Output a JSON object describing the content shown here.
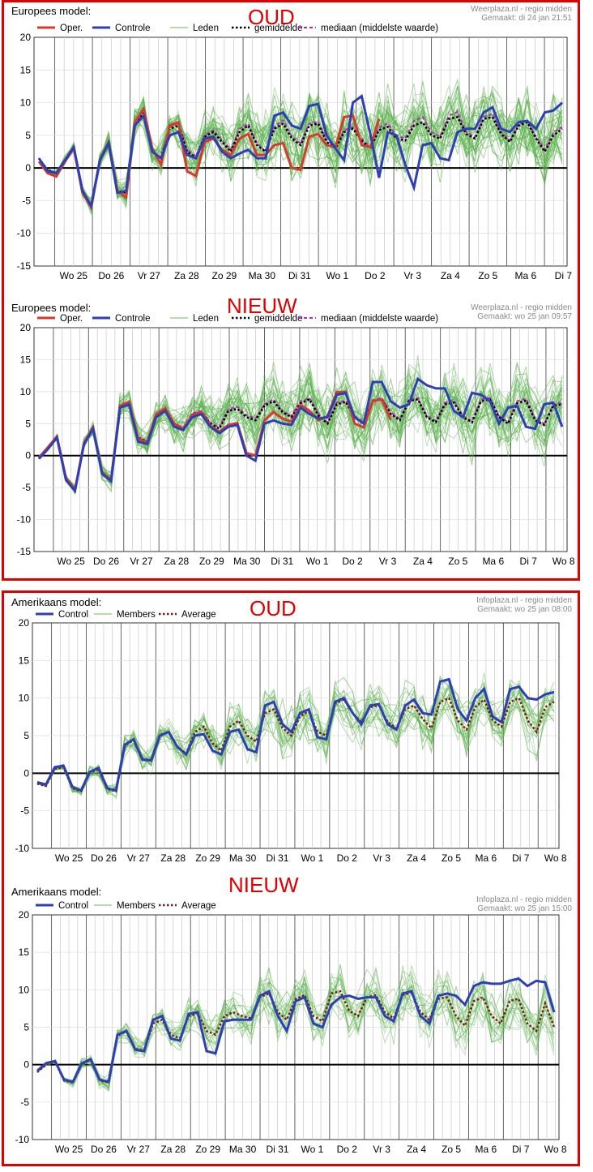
{
  "frames": [
    {
      "name": "frame-europees"
    },
    {
      "name": "frame-amerikaans"
    }
  ],
  "chart_data": [
    {
      "type": "line",
      "panel_title": "Europees model:",
      "label": "OUD",
      "credit_source": "Weerplaza.nl - regio midden",
      "credit_made": "Gemaakt: di 24 jan 21:51",
      "legend": [
        "Oper.",
        "Controle",
        "Leden",
        "gemiddelde",
        "mediaan (middelste waarde)"
      ],
      "ylim": [
        -15,
        20
      ],
      "yticks": [
        "20",
        "15",
        "10",
        "5",
        "0",
        "-5",
        "-10",
        "-15"
      ],
      "days": [
        "Wo 25",
        "Do 26",
        "Vr 27",
        "Za 28",
        "Zo 29",
        "Ma 30",
        "Di 31",
        "Wo 1",
        "Do 2",
        "Vr 3",
        "Za 4",
        "Zo 5",
        "Ma 6",
        "Di 7"
      ],
      "colors": {
        "oper": "#d63a2f",
        "control": "#2e3fb5",
        "members": "#5cb24e",
        "mean": "#000000",
        "median": "#c21fcc"
      },
      "control": [
        1.5,
        -0.5,
        -0.8,
        1.2,
        3.2,
        -3.5,
        -5.8,
        1.2,
        3.8,
        -3.8,
        -3.5,
        6.5,
        8.0,
        2.5,
        1.5,
        5.0,
        5.5,
        2.0,
        1.5,
        4.5,
        4.8,
        2.5,
        1.5,
        2.2,
        2.8,
        1.5,
        1.5,
        8.0,
        8.5,
        6.5,
        6.0,
        9.5,
        9.8,
        5.0,
        3.0,
        1.2,
        10.0,
        11.0,
        5.2,
        -1.5,
        5.5,
        5.0,
        0.5,
        -3.0,
        3.5,
        3.8,
        1.5,
        1.2,
        5.5,
        6.0,
        6.0,
        8.5,
        9.3,
        6.0,
        5.5,
        7.0,
        7.2,
        6.0,
        8.5,
        8.8,
        10.0
      ],
      "oper": [
        1.0,
        -0.8,
        -1.3,
        1.0,
        3.0,
        -3.8,
        -6.0,
        1.3,
        3.9,
        -3.5,
        -4.5,
        7.0,
        9.0,
        3.0,
        0.5,
        6.5,
        7.0,
        -0.5,
        -1.2,
        4.0,
        4.5,
        2.8,
        2.0,
        4.5,
        5.2,
        2.0,
        2.0,
        3.5,
        3.8,
        0.0,
        -0.3,
        4.8,
        5.2,
        3.5,
        3.2,
        7.8,
        8.0,
        3.5,
        3.2,
        7.5
      ],
      "mean": [
        1.5,
        -0.3,
        -0.8,
        1.2,
        3.2,
        -3.6,
        -5.9,
        1.2,
        3.8,
        -3.5,
        -3.8,
        6.8,
        8.5,
        2.5,
        1.5,
        6.0,
        6.5,
        2.5,
        1.5,
        4.8,
        5.5,
        4.0,
        2.5,
        5.5,
        6.5,
        3.5,
        2.5,
        6.0,
        6.8,
        4.5,
        3.5,
        6.5,
        6.8,
        4.0,
        3.0,
        5.5,
        6.0,
        4.2,
        3.0,
        5.8,
        6.3,
        4.5,
        4.2,
        6.5,
        7.0,
        5.0,
        4.5,
        7.5,
        7.8,
        5.2,
        4.5,
        7.5,
        7.8,
        5.2,
        4.0,
        6.5,
        7.0,
        4.5,
        2.5,
        5.0,
        6.0
      ],
      "median": [
        1.5,
        -0.3,
        -0.8,
        1.2,
        3.2,
        -3.6,
        -5.9,
        1.2,
        3.8,
        -3.5,
        -3.8,
        6.8,
        8.6,
        2.6,
        1.6,
        6.3,
        6.9,
        2.8,
        1.8,
        5.0,
        5.8,
        4.3,
        2.8,
        6.0,
        6.8,
        3.8,
        2.5,
        6.3,
        7.3,
        4.8,
        3.8,
        6.8,
        7.1,
        4.3,
        3.2,
        5.8,
        6.3,
        4.5,
        3.2,
        6.2,
        6.8,
        5.0,
        4.5,
        7.2,
        7.8,
        5.5,
        4.8,
        8.0,
        8.6,
        5.5,
        4.7,
        7.8,
        8.3,
        5.5,
        4.2,
        6.8,
        7.2,
        4.8,
        2.8,
        5.5,
        6.3
      ]
    },
    {
      "type": "line",
      "panel_title": "Europees model:",
      "label": "NIEUW",
      "credit_source": "Weerplaza.nl - regio midden",
      "credit_made": "Gemaakt: wo 25 jan 09:57",
      "legend": [
        "Oper.",
        "Controle",
        "Leden",
        "gemiddelde",
        "mediaan (middelste waarde)"
      ],
      "ylim": [
        -15,
        20
      ],
      "yticks": [
        "20",
        "15",
        "10",
        "5",
        "0",
        "-5",
        "-10",
        "-15"
      ],
      "days": [
        "Wo 25",
        "Do 26",
        "Vr 27",
        "Za 28",
        "Zo 29",
        "Ma 30",
        "Di 31",
        "Wo 1",
        "Do 2",
        "Vr 3",
        "Za 4",
        "Zo 5",
        "Ma 6",
        "Di 7",
        "Wo 8"
      ],
      "colors": {
        "oper": "#d63a2f",
        "control": "#2e3fb5",
        "members": "#5cb24e",
        "mean": "#000000",
        "median": "#c21fcc"
      },
      "control": [
        -0.5,
        1.0,
        2.8,
        -3.8,
        -5.5,
        1.8,
        4.2,
        -2.8,
        -4.0,
        7.5,
        8.0,
        2.2,
        1.8,
        6.0,
        7.0,
        4.5,
        4.0,
        6.0,
        6.5,
        4.5,
        3.5,
        4.5,
        4.8,
        0.0,
        -0.8,
        5.0,
        5.5,
        5.0,
        4.8,
        7.5,
        6.5,
        5.8,
        6.0,
        9.5,
        9.8,
        6.0,
        5.0,
        11.5,
        11.5,
        8.5,
        7.5,
        8.0,
        12.0,
        11.0,
        10.5,
        10.5,
        7.0,
        6.0,
        9.8,
        9.5,
        8.5,
        5.0,
        7.5,
        7.8,
        4.5,
        4.2,
        8.0,
        8.3,
        4.5
      ],
      "oper": [
        -0.3,
        1.3,
        3.0,
        -3.5,
        -5.3,
        2.0,
        4.4,
        -2.6,
        -3.8,
        7.8,
        8.4,
        2.7,
        2.0,
        6.5,
        7.4,
        5.0,
        4.2,
        6.3,
        6.8,
        4.7,
        3.7,
        4.8,
        5.1,
        0.4,
        0.0,
        5.5,
        6.8,
        5.8,
        5.3,
        7.9,
        7.0,
        5.5,
        6.2,
        9.9,
        10.0,
        5.0,
        4.4,
        8.5,
        8.8,
        5.6
      ],
      "mean": [
        -0.4,
        1.2,
        2.9,
        -3.6,
        -5.4,
        1.9,
        4.3,
        -2.7,
        -3.9,
        7.6,
        8.2,
        2.8,
        2.2,
        6.2,
        7.0,
        4.8,
        4.2,
        6.4,
        6.8,
        5.0,
        4.2,
        7.0,
        7.3,
        6.0,
        5.5,
        7.8,
        8.5,
        6.8,
        6.0,
        8.2,
        8.8,
        6.2,
        5.0,
        8.0,
        8.4,
        6.0,
        5.0,
        8.5,
        8.8,
        6.5,
        5.5,
        8.5,
        8.8,
        6.0,
        5.2,
        8.0,
        8.3,
        6.0,
        5.2,
        8.5,
        8.8,
        6.0,
        5.0,
        8.2,
        8.6,
        5.5,
        4.8,
        7.8,
        8.0
      ],
      "median": [
        -0.4,
        1.2,
        2.9,
        -3.6,
        -5.4,
        1.9,
        4.3,
        -2.7,
        -3.9,
        7.6,
        8.2,
        2.8,
        2.2,
        6.4,
        7.2,
        5.0,
        4.4,
        6.6,
        7.0,
        5.2,
        4.4,
        7.3,
        7.6,
        6.3,
        5.8,
        8.0,
        8.8,
        7.0,
        6.2,
        8.5,
        9.0,
        6.5,
        5.2,
        8.3,
        8.6,
        6.2,
        5.2,
        8.7,
        9.0,
        6.8,
        5.7,
        8.8,
        9.0,
        6.2,
        5.4,
        8.3,
        8.6,
        6.2,
        5.4,
        8.8,
        9.0,
        6.2,
        5.2,
        8.5,
        8.9,
        5.8,
        5.0,
        8.0,
        8.3
      ]
    },
    {
      "type": "line",
      "panel_title": "Amerikaans model:",
      "label": "OUD",
      "credit_source": "Infoplaza.nl - regio midden",
      "credit_made": "Gemaakt: wo 25 jan 08:00",
      "legend": [
        "Control",
        "Members",
        "Average"
      ],
      "ylim": [
        -10,
        20
      ],
      "yticks": [
        "20",
        "15",
        "10",
        "5",
        "0",
        "-5",
        "-10"
      ],
      "days": [
        "Wo 25",
        "Do 26",
        "Vr 27",
        "Za 28",
        "Zo 29",
        "Ma 30",
        "Di 31",
        "Wo 1",
        "Do 2",
        "Vr 3",
        "Za 4",
        "Zo 5",
        "Ma 6",
        "Di 7",
        "Wo 8"
      ],
      "colors": {
        "control": "#2e3fb5",
        "members": "#5cb24e",
        "mean": "#7a1a10"
      },
      "control": [
        -1.2,
        -1.5,
        0.8,
        1.0,
        -1.8,
        -2.3,
        0.2,
        0.7,
        -2.0,
        -2.3,
        3.8,
        4.5,
        1.8,
        1.7,
        5.0,
        5.5,
        3.5,
        2.5,
        5.0,
        5.2,
        3.0,
        2.5,
        5.5,
        5.8,
        3.2,
        2.8,
        9.0,
        9.5,
        6.5,
        5.5,
        8.0,
        8.5,
        4.8,
        4.5,
        9.5,
        10.0,
        8.0,
        6.5,
        9.0,
        9.2,
        6.5,
        5.8,
        9.0,
        9.8,
        8.0,
        7.8,
        12.2,
        12.5,
        8.5,
        7.0,
        10.0,
        11.2,
        7.5,
        6.8,
        11.2,
        11.5,
        10.0,
        9.8,
        10.5,
        10.8
      ],
      "mean": [
        -1.4,
        -1.7,
        0.6,
        0.8,
        -2.0,
        -2.4,
        0.1,
        0.5,
        -2.1,
        -2.4,
        3.7,
        4.4,
        1.9,
        1.8,
        5.1,
        5.5,
        3.6,
        2.6,
        5.5,
        6.2,
        4.0,
        3.0,
        6.2,
        7.0,
        5.0,
        4.2,
        8.0,
        8.5,
        6.0,
        5.0,
        7.6,
        8.2,
        5.5,
        5.0,
        9.3,
        9.8,
        8.0,
        6.8,
        8.8,
        9.0,
        6.8,
        6.0,
        8.5,
        9.0,
        7.2,
        6.0,
        9.5,
        10.0,
        7.0,
        5.8,
        8.8,
        9.8,
        7.0,
        6.2,
        9.5,
        10.0,
        7.0,
        5.5,
        8.8,
        9.5
      ]
    },
    {
      "type": "line",
      "panel_title": "Amerikaans model:",
      "label": "NIEUW",
      "credit_source": "Infoplaza.nl - regio midden",
      "credit_made": "Gemaakt: wo 25 jan 15:00",
      "legend": [
        "Control",
        "Members",
        "Average"
      ],
      "ylim": [
        -10,
        20
      ],
      "yticks": [
        "20",
        "15",
        "10",
        "5",
        "0",
        "-5",
        "-10"
      ],
      "days": [
        "Wo 25",
        "Do 26",
        "Vr 27",
        "Za 28",
        "Zo 29",
        "Ma 30",
        "Di 31",
        "Wo 1",
        "Do 2",
        "Vr 3",
        "Za 4",
        "Zo 5",
        "Ma 6",
        "Di 7",
        "Wo 8"
      ],
      "colors": {
        "control": "#2e3fb5",
        "members": "#5cb24e",
        "mean": "#7a1a10"
      },
      "control": [
        -0.8,
        0.2,
        0.5,
        -2.0,
        -2.3,
        0.2,
        0.7,
        -2.0,
        -2.3,
        4.0,
        4.5,
        2.0,
        1.8,
        6.0,
        6.5,
        3.5,
        3.2,
        6.8,
        7.0,
        1.8,
        1.5,
        5.8,
        6.0,
        6.0,
        6.0,
        9.2,
        9.8,
        6.5,
        4.5,
        8.5,
        9.0,
        5.5,
        5.0,
        8.0,
        9.0,
        9.2,
        8.8,
        9.0,
        9.0,
        6.5,
        5.8,
        9.5,
        9.8,
        6.5,
        5.5,
        9.2,
        9.5,
        9.2,
        8.0,
        10.5,
        11.0,
        10.8,
        10.8,
        11.2,
        11.5,
        10.5,
        11.2,
        11.0,
        7.0
      ],
      "mean": [
        -1.0,
        0.0,
        0.4,
        -2.1,
        -2.4,
        0.1,
        0.6,
        -2.1,
        -2.4,
        3.9,
        4.4,
        2.1,
        1.9,
        5.5,
        6.0,
        4.0,
        3.5,
        6.5,
        6.8,
        4.5,
        4.0,
        6.5,
        7.0,
        6.5,
        6.2,
        9.0,
        9.5,
        7.0,
        6.0,
        8.8,
        9.3,
        6.5,
        5.8,
        9.5,
        9.8,
        7.2,
        6.5,
        9.0,
        9.3,
        7.0,
        6.2,
        9.3,
        9.6,
        7.0,
        6.0,
        8.8,
        9.0,
        6.5,
        5.2,
        8.5,
        9.0,
        6.5,
        5.5,
        8.5,
        8.8,
        5.5,
        4.5,
        8.2,
        5.0
      ]
    }
  ]
}
